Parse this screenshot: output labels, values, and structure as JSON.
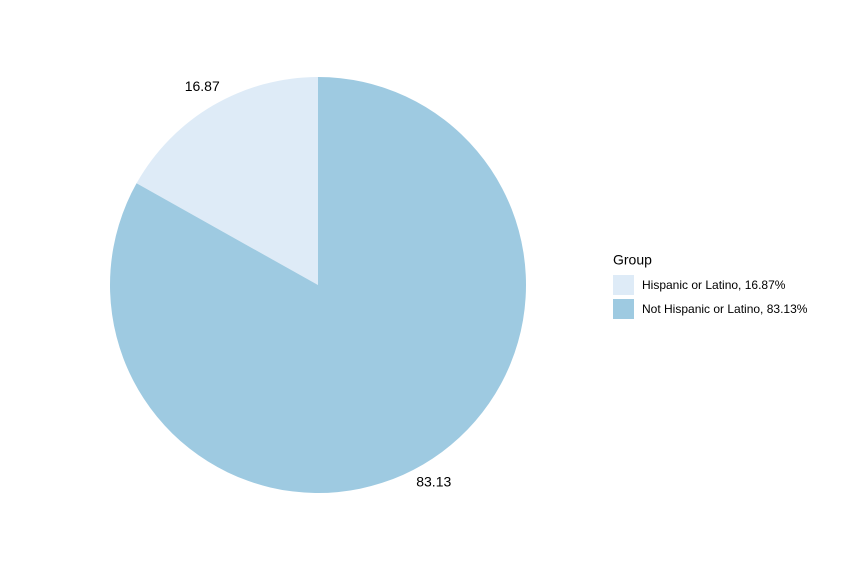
{
  "chart_data": {
    "type": "pie",
    "categories": [
      "Hispanic or Latino, 16.87%",
      "Not Hispanic or Latino, 83.13%"
    ],
    "values": [
      16.87,
      83.13
    ],
    "colors": [
      "#deebf7",
      "#9ecae1"
    ],
    "legend_title": "Group",
    "legend_position": "right"
  }
}
